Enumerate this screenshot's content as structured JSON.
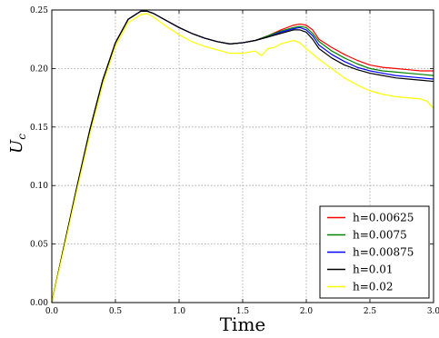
{
  "chart_data": {
    "type": "line",
    "title": "",
    "xlabel": "Time",
    "ylabel": "U_c",
    "ylabel_main": "U",
    "ylabel_sub": "c",
    "xlim": [
      0.0,
      3.0
    ],
    "ylim": [
      0.0,
      0.25
    ],
    "x_ticks": [
      "0.0",
      "0.5",
      "1.0",
      "1.5",
      "2.0",
      "2.5",
      "3.0"
    ],
    "y_ticks": [
      "0.00",
      "0.05",
      "0.10",
      "0.15",
      "0.20",
      "0.25"
    ],
    "grid": true,
    "legend_position": "lower-right",
    "series": [
      {
        "name": "h=0.00625",
        "color": "#ff0000",
        "x": [
          0.0,
          0.1,
          0.2,
          0.3,
          0.4,
          0.5,
          0.6,
          0.7,
          0.75,
          0.8,
          0.9,
          1.0,
          1.1,
          1.2,
          1.3,
          1.4,
          1.5,
          1.6,
          1.7,
          1.8,
          1.9,
          1.95,
          2.0,
          2.05,
          2.1,
          2.2,
          2.3,
          2.4,
          2.5,
          2.6,
          2.7,
          2.8,
          2.9,
          3.0
        ],
        "y": [
          0.0,
          0.05,
          0.1,
          0.148,
          0.19,
          0.222,
          0.242,
          0.249,
          0.249,
          0.247,
          0.241,
          0.235,
          0.23,
          0.226,
          0.223,
          0.221,
          0.222,
          0.224,
          0.228,
          0.233,
          0.237,
          0.238,
          0.237,
          0.233,
          0.225,
          0.218,
          0.212,
          0.207,
          0.203,
          0.201,
          0.2,
          0.199,
          0.198,
          0.198
        ]
      },
      {
        "name": "h=0.0075",
        "color": "#008000",
        "x": [
          0.0,
          0.1,
          0.2,
          0.3,
          0.4,
          0.5,
          0.6,
          0.7,
          0.75,
          0.8,
          0.9,
          1.0,
          1.1,
          1.2,
          1.3,
          1.4,
          1.5,
          1.6,
          1.7,
          1.8,
          1.9,
          1.95,
          2.0,
          2.05,
          2.1,
          2.2,
          2.3,
          2.4,
          2.5,
          2.6,
          2.7,
          2.8,
          2.9,
          3.0
        ],
        "y": [
          0.0,
          0.05,
          0.1,
          0.148,
          0.19,
          0.222,
          0.242,
          0.249,
          0.249,
          0.247,
          0.241,
          0.235,
          0.23,
          0.226,
          0.223,
          0.221,
          0.222,
          0.224,
          0.228,
          0.232,
          0.235,
          0.236,
          0.235,
          0.23,
          0.223,
          0.215,
          0.209,
          0.204,
          0.2,
          0.198,
          0.197,
          0.196,
          0.195,
          0.194
        ]
      },
      {
        "name": "h=0.00875",
        "color": "#0000ff",
        "x": [
          0.0,
          0.1,
          0.2,
          0.3,
          0.4,
          0.5,
          0.6,
          0.7,
          0.75,
          0.8,
          0.9,
          1.0,
          1.1,
          1.2,
          1.3,
          1.4,
          1.5,
          1.6,
          1.7,
          1.8,
          1.9,
          1.95,
          2.0,
          2.05,
          2.1,
          2.2,
          2.3,
          2.4,
          2.5,
          2.6,
          2.7,
          2.8,
          2.9,
          3.0
        ],
        "y": [
          0.0,
          0.05,
          0.1,
          0.148,
          0.19,
          0.222,
          0.242,
          0.249,
          0.249,
          0.247,
          0.241,
          0.235,
          0.23,
          0.226,
          0.223,
          0.221,
          0.222,
          0.224,
          0.227,
          0.231,
          0.234,
          0.235,
          0.233,
          0.228,
          0.22,
          0.212,
          0.206,
          0.201,
          0.198,
          0.196,
          0.194,
          0.193,
          0.192,
          0.191
        ]
      },
      {
        "name": "h=0.01",
        "color": "#000000",
        "x": [
          0.0,
          0.1,
          0.2,
          0.3,
          0.4,
          0.5,
          0.6,
          0.7,
          0.75,
          0.8,
          0.9,
          1.0,
          1.1,
          1.2,
          1.3,
          1.4,
          1.5,
          1.6,
          1.7,
          1.8,
          1.9,
          1.95,
          2.0,
          2.05,
          2.1,
          2.2,
          2.3,
          2.4,
          2.5,
          2.6,
          2.7,
          2.8,
          2.9,
          3.0
        ],
        "y": [
          0.0,
          0.05,
          0.1,
          0.148,
          0.19,
          0.222,
          0.242,
          0.249,
          0.249,
          0.247,
          0.241,
          0.235,
          0.23,
          0.226,
          0.223,
          0.221,
          0.222,
          0.224,
          0.227,
          0.23,
          0.233,
          0.233,
          0.231,
          0.225,
          0.217,
          0.209,
          0.203,
          0.199,
          0.196,
          0.194,
          0.192,
          0.191,
          0.19,
          0.189
        ]
      },
      {
        "name": "h=0.02",
        "color": "#ffff00",
        "x": [
          0.0,
          0.1,
          0.2,
          0.3,
          0.4,
          0.5,
          0.6,
          0.7,
          0.75,
          0.8,
          0.9,
          1.0,
          1.1,
          1.2,
          1.3,
          1.4,
          1.5,
          1.6,
          1.65,
          1.7,
          1.75,
          1.8,
          1.9,
          1.95,
          2.0,
          2.1,
          2.2,
          2.3,
          2.4,
          2.5,
          2.6,
          2.7,
          2.8,
          2.9,
          2.95,
          3.0
        ],
        "y": [
          0.0,
          0.048,
          0.097,
          0.144,
          0.186,
          0.219,
          0.239,
          0.246,
          0.247,
          0.244,
          0.236,
          0.229,
          0.223,
          0.219,
          0.216,
          0.213,
          0.213,
          0.215,
          0.211,
          0.217,
          0.218,
          0.221,
          0.224,
          0.222,
          0.217,
          0.208,
          0.2,
          0.192,
          0.186,
          0.181,
          0.178,
          0.176,
          0.175,
          0.174,
          0.172,
          0.166
        ]
      }
    ]
  }
}
